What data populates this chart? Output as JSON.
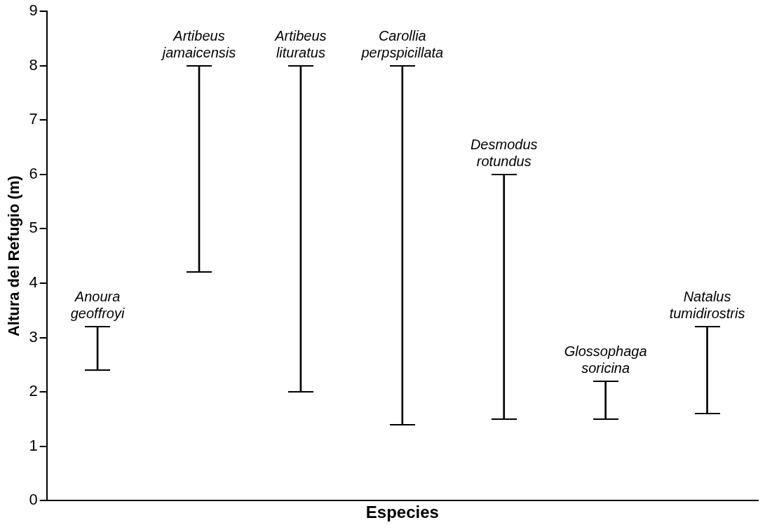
{
  "chart_data": {
    "type": "bar",
    "xlabel": "Especies",
    "ylabel": "Altura del Refugio (m)",
    "categories": [
      "Anoura geoffroyi",
      "Artibeus jamaicensis",
      "Artibeus lituratus",
      "Carollia perpspicillata",
      "Desmodus rotundus",
      "Glossophaga soricina",
      "Natalus tumidirostris"
    ],
    "base": [
      2.4,
      4.2,
      2,
      1.4,
      1.5,
      1.5,
      1.6
    ],
    "values": [
      0.8,
      3.8,
      6,
      6.6,
      4.5,
      0.7,
      1.6
    ],
    "color": "#000000",
    "ylim": [
      0,
      9
    ],
    "yticks": [
      0,
      1,
      2,
      3,
      4,
      5,
      6,
      7,
      8,
      9
    ],
    "legend": false,
    "tick_labels": "y"
  }
}
